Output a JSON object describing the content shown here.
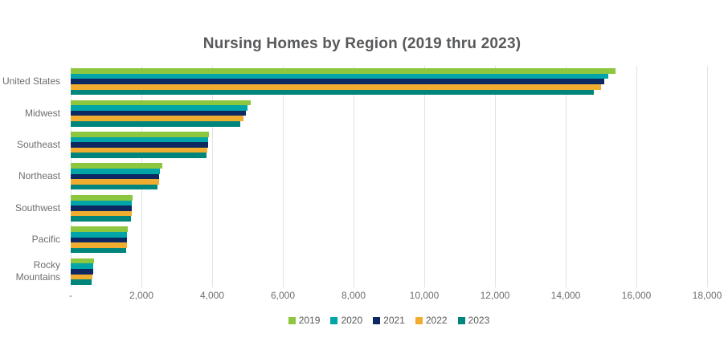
{
  "chart_data": {
    "type": "bar",
    "orientation": "horizontal",
    "title": "Nursing Homes by Region (2019 thru 2023)",
    "categories": [
      "United States",
      "Midwest",
      "Southeast",
      "Northeast",
      "Southwest",
      "Pacific",
      "Rocky Mountains"
    ],
    "series": [
      {
        "name": "2019",
        "color": "#8DC63F",
        "values": [
          15400,
          5100,
          3900,
          2600,
          1760,
          1620,
          650
        ]
      },
      {
        "name": "2020",
        "color": "#00A5A8",
        "values": [
          15200,
          5000,
          3890,
          2530,
          1730,
          1600,
          630
        ]
      },
      {
        "name": "2021",
        "color": "#0E2862",
        "values": [
          15100,
          4950,
          3880,
          2500,
          1730,
          1590,
          630
        ]
      },
      {
        "name": "2022",
        "color": "#F0AD2F",
        "values": [
          15000,
          4880,
          3860,
          2490,
          1720,
          1590,
          620
        ]
      },
      {
        "name": "2023",
        "color": "#00857C",
        "values": [
          14800,
          4800,
          3840,
          2450,
          1700,
          1570,
          600
        ]
      }
    ],
    "xlim": [
      0,
      18000
    ],
    "x_tick_step": 2000,
    "x_tick_labels": [
      "-",
      "2,000",
      "4,000",
      "6,000",
      "8,000",
      "10,000",
      "12,000",
      "14,000",
      "16,000",
      "18,000"
    ],
    "grid": "vertical",
    "legend_position": "bottom"
  },
  "styles": {
    "title_color": "#58595B",
    "axis_label_color": "#6E6E6E",
    "legend_text_color": "#595959",
    "gridline_color": "#E3E3E3",
    "background": "#FFFFFF"
  }
}
